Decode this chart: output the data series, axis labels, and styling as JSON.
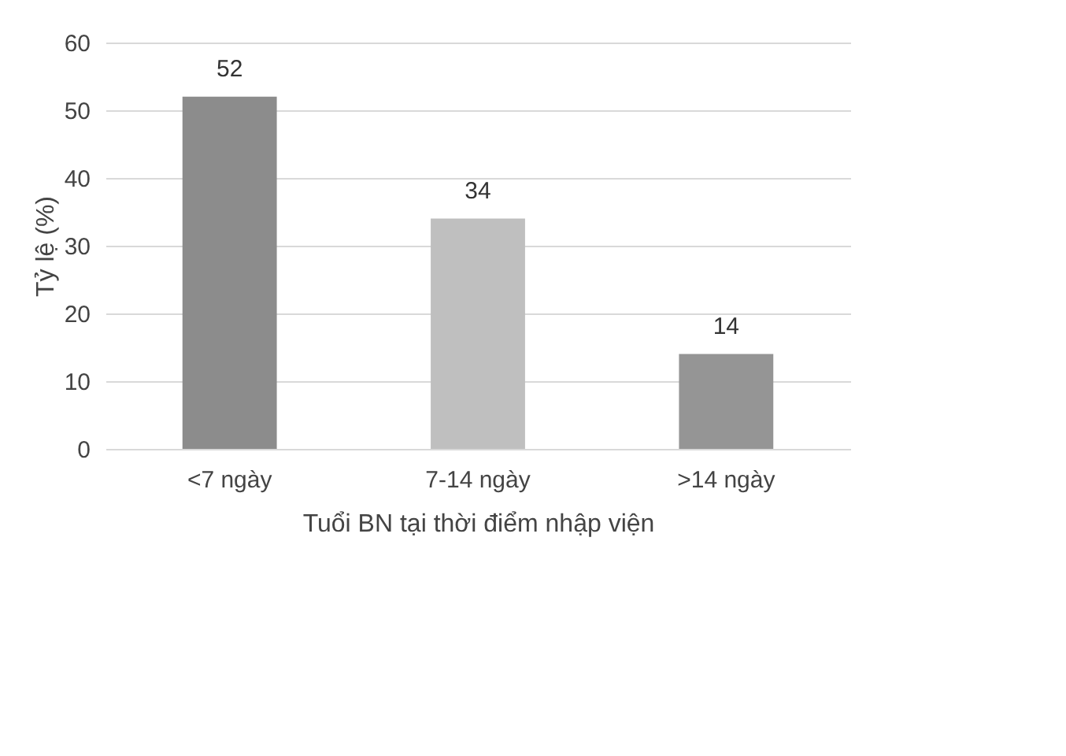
{
  "chart_data": {
    "type": "bar",
    "xlabel": "Tuổi BN tại thời điểm nhập viện",
    "ylabel": "Tỷ lệ (%)",
    "categories": [
      "<7 ngày",
      "7-14 ngày",
      ">14 ngày"
    ],
    "values": [
      52,
      34,
      14
    ],
    "colors": [
      "#8c8c8c",
      "#bfbfbf",
      "#959595"
    ],
    "ylim": [
      0,
      60
    ],
    "yticks": [
      0,
      10,
      20,
      30,
      40,
      50,
      60
    ],
    "grid": "y",
    "data_labels": true
  }
}
